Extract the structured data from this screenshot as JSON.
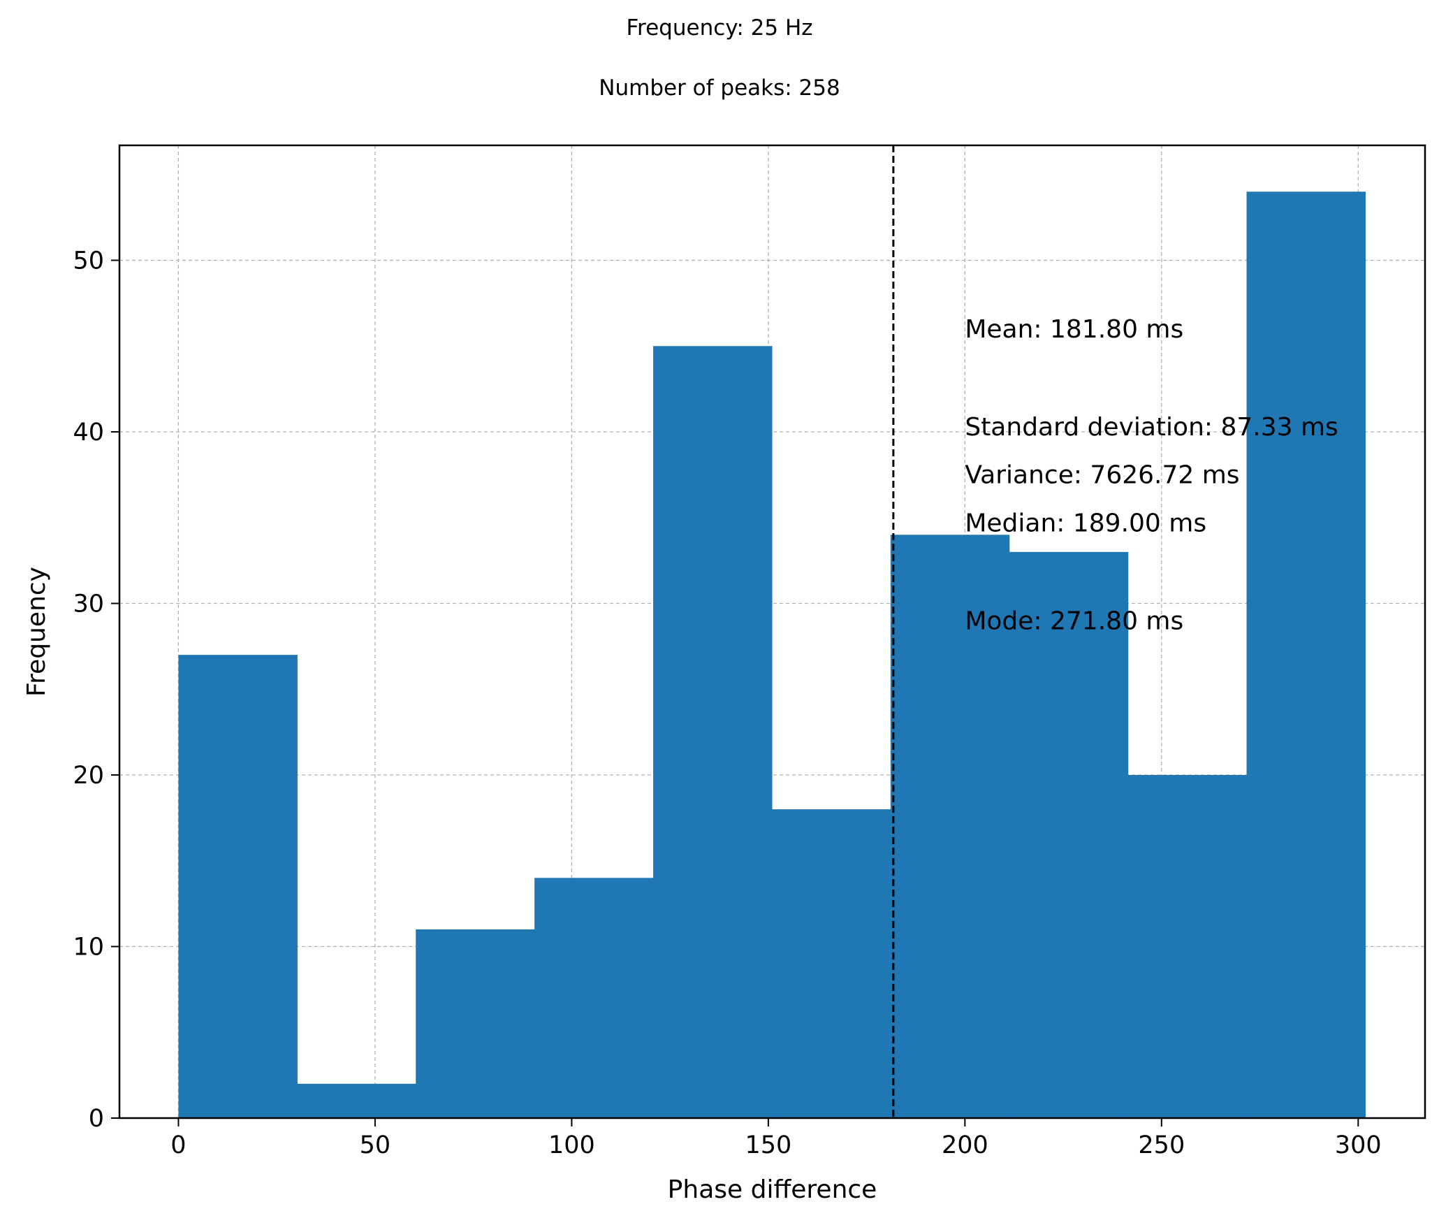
{
  "header": {
    "frequency_text": "Frequency: 25 Hz",
    "peaks_text": "Number of peaks: 258"
  },
  "colors": {
    "bar": "#1f77b4",
    "grid": "#b0b0b0",
    "mean_line": "#000000"
  },
  "chart_data": {
    "type": "bar",
    "title": "",
    "xlabel": "Phase difference",
    "ylabel": "Frequency",
    "xlim": [
      -15,
      317
    ],
    "ylim": [
      0,
      56.7
    ],
    "x_ticks": [
      0,
      50,
      100,
      150,
      200,
      250,
      300
    ],
    "y_ticks": [
      0,
      10,
      20,
      30,
      40,
      50
    ],
    "grid": true,
    "bins": [
      {
        "x0": 0.0,
        "x1": 30.18,
        "value": 27
      },
      {
        "x0": 30.18,
        "x1": 60.36,
        "value": 2
      },
      {
        "x0": 60.36,
        "x1": 90.54,
        "value": 11
      },
      {
        "x0": 90.54,
        "x1": 120.72,
        "value": 14
      },
      {
        "x0": 120.72,
        "x1": 150.9,
        "value": 45
      },
      {
        "x0": 150.9,
        "x1": 181.08,
        "value": 18
      },
      {
        "x0": 181.08,
        "x1": 211.26,
        "value": 34
      },
      {
        "x0": 211.26,
        "x1": 241.44,
        "value": 33
      },
      {
        "x0": 241.44,
        "x1": 271.62,
        "value": 20
      },
      {
        "x0": 271.62,
        "x1": 301.8,
        "value": 54
      }
    ],
    "mean_line_x": 181.8,
    "annotations": [
      {
        "text": "Mean: 181.80 ms",
        "x": 200,
        "y": 45.5
      },
      {
        "text": "Standard deviation: 87.33 ms",
        "x": 200,
        "y": 39.8
      },
      {
        "text": "Variance: 7626.72 ms",
        "x": 200,
        "y": 37.0
      },
      {
        "text": "Median: 189.00 ms",
        "x": 200,
        "y": 34.2
      },
      {
        "text": "Mode: 271.80 ms",
        "x": 200,
        "y": 28.5
      }
    ]
  }
}
